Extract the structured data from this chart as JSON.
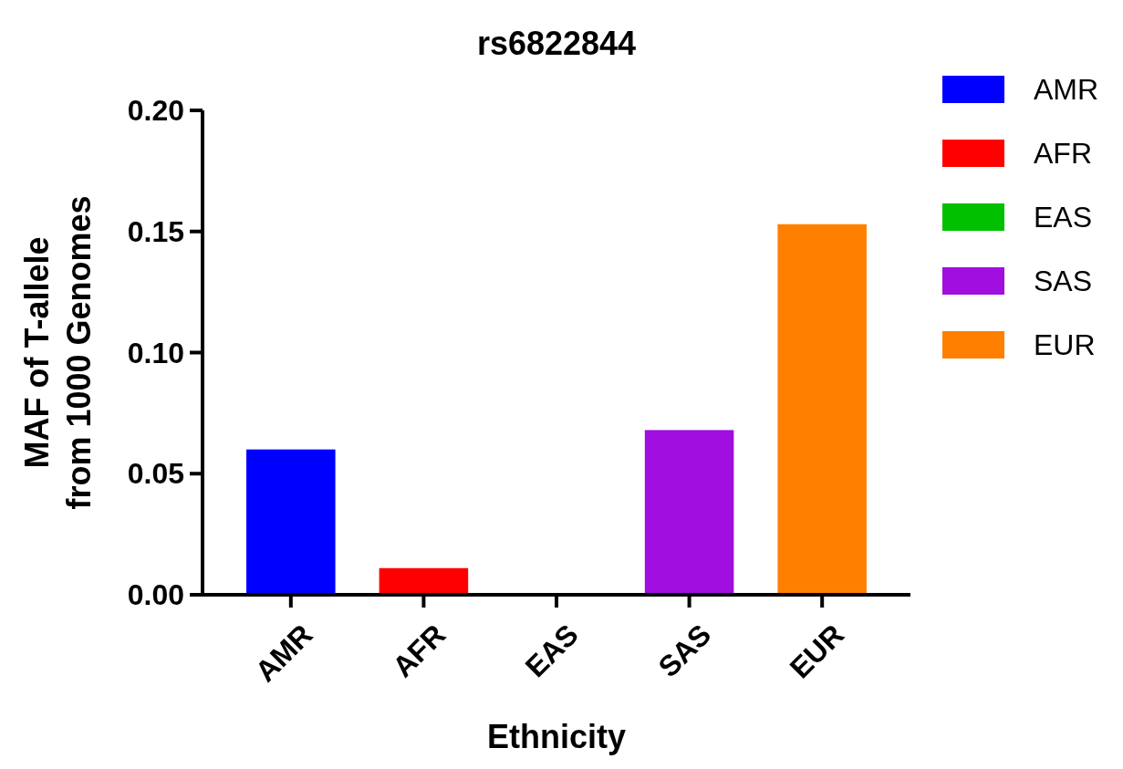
{
  "chart_data": {
    "type": "bar",
    "title": "rs6822844",
    "xlabel": "Ethnicity",
    "ylabel": "MAF of T-allele\nfrom 1000 Genomes",
    "categories": [
      "AMR",
      "AFR",
      "EAS",
      "SAS",
      "EUR"
    ],
    "series": [
      {
        "name": "AMR",
        "color": "#0000ff",
        "values": [
          0.06,
          null,
          null,
          null,
          null
        ]
      },
      {
        "name": "AFR",
        "color": "#ff0000",
        "values": [
          null,
          0.011,
          null,
          null,
          null
        ]
      },
      {
        "name": "EAS",
        "color": "#00c000",
        "values": [
          null,
          null,
          0,
          null,
          null
        ]
      },
      {
        "name": "SAS",
        "color": "#a00ee0",
        "values": [
          null,
          null,
          null,
          0.068,
          null
        ]
      },
      {
        "name": "EUR",
        "color": "#ff8000",
        "values": [
          null,
          null,
          null,
          null,
          0.153
        ]
      }
    ],
    "ylim": [
      0,
      0.2
    ],
    "yticks": [
      {
        "value": 0,
        "label": "0.00"
      },
      {
        "value": 0.05,
        "label": "0.05"
      },
      {
        "value": 0.1,
        "label": "0.10"
      },
      {
        "value": 0.15,
        "label": "0.15"
      },
      {
        "value": 0.2,
        "label": "0.20"
      }
    ],
    "legend": "top right"
  }
}
